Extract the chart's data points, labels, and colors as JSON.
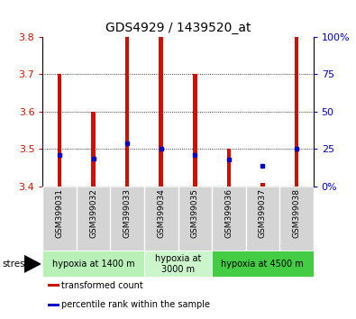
{
  "title": "GDS4929 / 1439520_at",
  "samples": [
    "GSM399031",
    "GSM399032",
    "GSM399033",
    "GSM399034",
    "GSM399035",
    "GSM399036",
    "GSM399037",
    "GSM399038"
  ],
  "red_bar_top": [
    3.7,
    3.6,
    3.8,
    3.8,
    3.7,
    3.5,
    3.41,
    3.8
  ],
  "red_bar_bottom": [
    3.4,
    3.4,
    3.4,
    3.4,
    3.4,
    3.4,
    3.4,
    3.4
  ],
  "blue_dot_y": [
    3.485,
    3.474,
    3.516,
    3.5,
    3.485,
    3.472,
    3.455,
    3.5
  ],
  "ylim": [
    3.4,
    3.8
  ],
  "yticks": [
    3.4,
    3.5,
    3.6,
    3.7,
    3.8
  ],
  "right_yticks": [
    0,
    25,
    50,
    75,
    100
  ],
  "groups": [
    {
      "label": "hypoxia at 1400 m",
      "start": 0,
      "end": 3,
      "color": "#b8f0b8"
    },
    {
      "label": "hypoxia at\n3000 m",
      "start": 3,
      "end": 5,
      "color": "#ccf5cc"
    },
    {
      "label": "hypoxia at 4500 m",
      "start": 5,
      "end": 8,
      "color": "#44cc44"
    }
  ],
  "bar_color": "#cc1100",
  "dot_color": "#0000cc",
  "bg_color": "#ffffff",
  "left_label_color": "#cc1100",
  "right_label_color": "#0000cc",
  "bar_width": 0.12,
  "stress_label": "stress",
  "legend_items": [
    {
      "color": "#cc1100",
      "label": "transformed count"
    },
    {
      "color": "#0000cc",
      "label": "percentile rank within the sample"
    }
  ]
}
